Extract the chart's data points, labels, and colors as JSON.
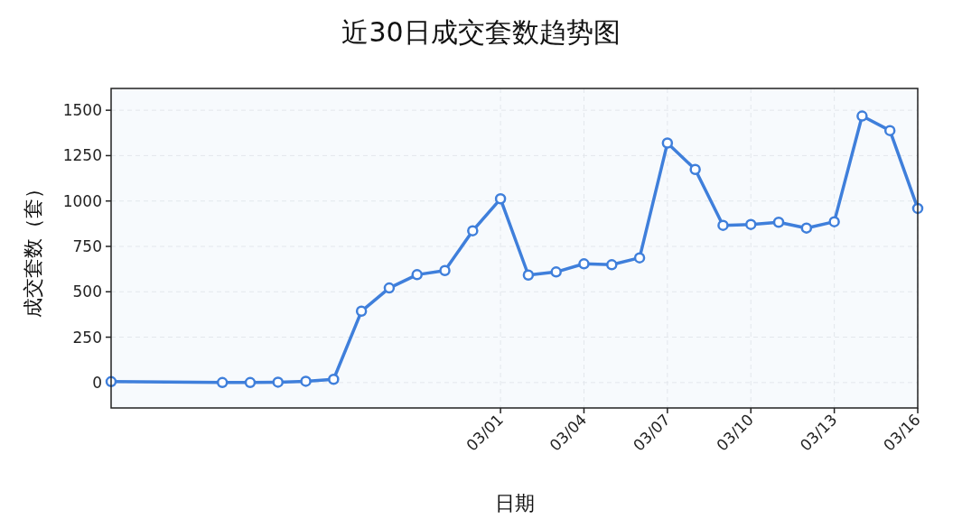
{
  "chart_data": {
    "type": "line",
    "title": "近30日成交套数趋势图",
    "xlabel": "日期",
    "ylabel": "成交套数（套）",
    "x": [
      "--02-15",
      "--02-19",
      "--02-20",
      "--02-21",
      "--02-22",
      "--02-23",
      "--02-24",
      "--02-25",
      "--02-26",
      "--02-27",
      "--02-28",
      "--03-01",
      "--03-02",
      "--03-03",
      "--03-04",
      "--03-05",
      "--03-06",
      "--03-07",
      "--03-08",
      "--03-09",
      "--03-10",
      "--03-11",
      "--03-12",
      "--03-13",
      "--03-14",
      "--03-15",
      "--03-16"
    ],
    "series": [
      {
        "color": "#3f7fdb",
        "values": [
          5,
          0,
          0,
          2,
          7,
          18,
          393,
          521,
          594,
          617,
          836,
          1012,
          592,
          609,
          654,
          649,
          687,
          1319,
          1174,
          866,
          871,
          883,
          851,
          886,
          1468,
          1388,
          959
        ]
      }
    ],
    "xlim": [
      "--02-15",
      "--03-16"
    ],
    "xticks": [
      {
        "value": "--03-01",
        "label": "03/01"
      },
      {
        "value": "--03-04",
        "label": "03/04"
      },
      {
        "value": "--03-07",
        "label": "03/07"
      },
      {
        "value": "--03-10",
        "label": "03/10"
      },
      {
        "value": "--03-13",
        "label": "03/13"
      },
      {
        "value": "--03-16",
        "label": "03/16"
      }
    ],
    "ylim": [
      -140,
      1620
    ],
    "yticks": [
      0,
      250,
      500,
      750,
      1000,
      1250,
      1500
    ],
    "grid": true,
    "marker": "circle",
    "line_style": "solid"
  }
}
